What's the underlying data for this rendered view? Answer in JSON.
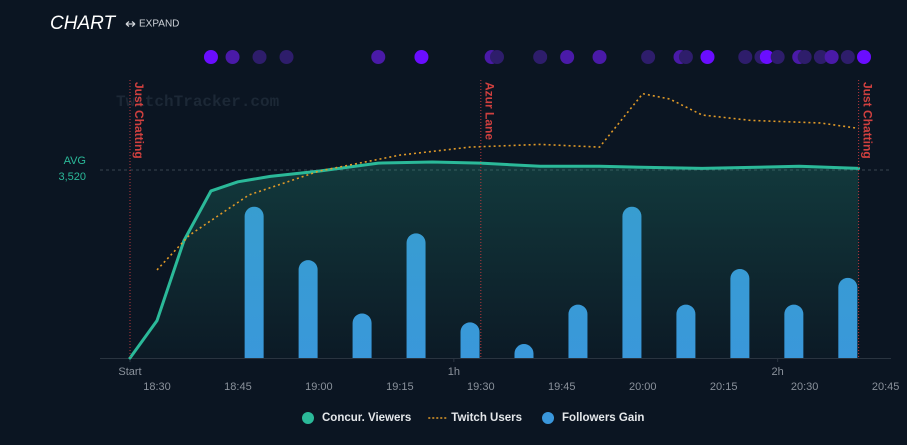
{
  "chart_data": {
    "type": "combo",
    "title": "CHART",
    "expand_label": "EXPAND",
    "watermark": "TwitchTracker.com",
    "xlim": [
      0,
      141
    ],
    "xticks": [
      {
        "value": 0,
        "label": "Start"
      },
      {
        "value": 60,
        "label": "1h"
      },
      {
        "value": 120,
        "label": "2h"
      }
    ],
    "time_ticks": [
      {
        "value": 5,
        "label": "18:30"
      },
      {
        "value": 20,
        "label": "18:45"
      },
      {
        "value": 35,
        "label": "19:00"
      },
      {
        "value": 50,
        "label": "19:15"
      },
      {
        "value": 65,
        "label": "19:30"
      },
      {
        "value": 80,
        "label": "19:45"
      },
      {
        "value": 95,
        "label": "20:00"
      },
      {
        "value": 110,
        "label": "20:15"
      },
      {
        "value": 125,
        "label": "20:30"
      },
      {
        "value": 140,
        "label": "20:45"
      }
    ],
    "ylim": [
      0,
      5000
    ],
    "y2lim": [
      0,
      30
    ],
    "y3lim": [
      1500000,
      2500000
    ],
    "average": {
      "label": "AVG",
      "value": 3520,
      "value_label": "3,520"
    },
    "games": [
      {
        "x": 0,
        "label": "Just Chatting"
      },
      {
        "x": 65,
        "label": "Azur Lane"
      },
      {
        "x": 135,
        "label": "Just Chatting"
      }
    ],
    "events": {
      "x": [
        15,
        19,
        24,
        29,
        46,
        54,
        67,
        68,
        76,
        81,
        87,
        96,
        102,
        103,
        107,
        114,
        117,
        118,
        120,
        124,
        125,
        128,
        130,
        133,
        136
      ],
      "colors": [
        "#6a0dff",
        "#4a1aa8",
        "#2e1d6b",
        "#2e1d6b",
        "#4a1aa8",
        "#6a0dff",
        "#4a1aa8",
        "#2e1d6b",
        "#2e1d6b",
        "#4a1aa8",
        "#4a1aa8",
        "#2e1d6b",
        "#4a1aa8",
        "#2e1d6b",
        "#6a0dff",
        "#2e1d6b",
        "#2e1d6b",
        "#6a0dff",
        "#2e1d6b",
        "#4a1aa8",
        "#2e1d6b",
        "#2e1d6b",
        "#4a1aa8",
        "#2e1d6b",
        "#6a0dff"
      ]
    },
    "series": [
      {
        "name": "Concur. Viewers",
        "type": "line",
        "color": "#2bb999",
        "x": [
          0,
          5,
          10,
          15,
          20,
          26,
          35,
          46,
          56,
          65,
          76,
          87,
          96,
          106,
          115,
          124,
          135
        ],
        "values": [
          0,
          700,
          2200,
          3130,
          3300,
          3400,
          3500,
          3650,
          3670,
          3650,
          3590,
          3590,
          3570,
          3550,
          3570,
          3590,
          3550
        ]
      },
      {
        "name": "Twitch Users",
        "type": "line",
        "style": "dotted",
        "axis": "y3",
        "color": "#e09a28",
        "x": [
          5,
          11,
          22,
          35,
          50,
          63,
          76,
          87,
          91,
          95,
          100,
          106,
          115,
          128,
          135
        ],
        "values": [
          1830000,
          1960000,
          2110000,
          2200000,
          2260000,
          2290000,
          2300000,
          2290000,
          2390000,
          2490000,
          2470000,
          2410000,
          2390000,
          2380000,
          2360000
        ]
      },
      {
        "name": "Followers Gain",
        "type": "bar",
        "axis": "y2",
        "color": "#3a97dc",
        "x": [
          23,
          33,
          43,
          53,
          63,
          73,
          83,
          93,
          103,
          113,
          123,
          133
        ],
        "values": [
          17,
          11,
          5,
          14,
          4,
          1,
          6,
          17,
          6,
          10,
          6,
          9
        ]
      }
    ]
  }
}
